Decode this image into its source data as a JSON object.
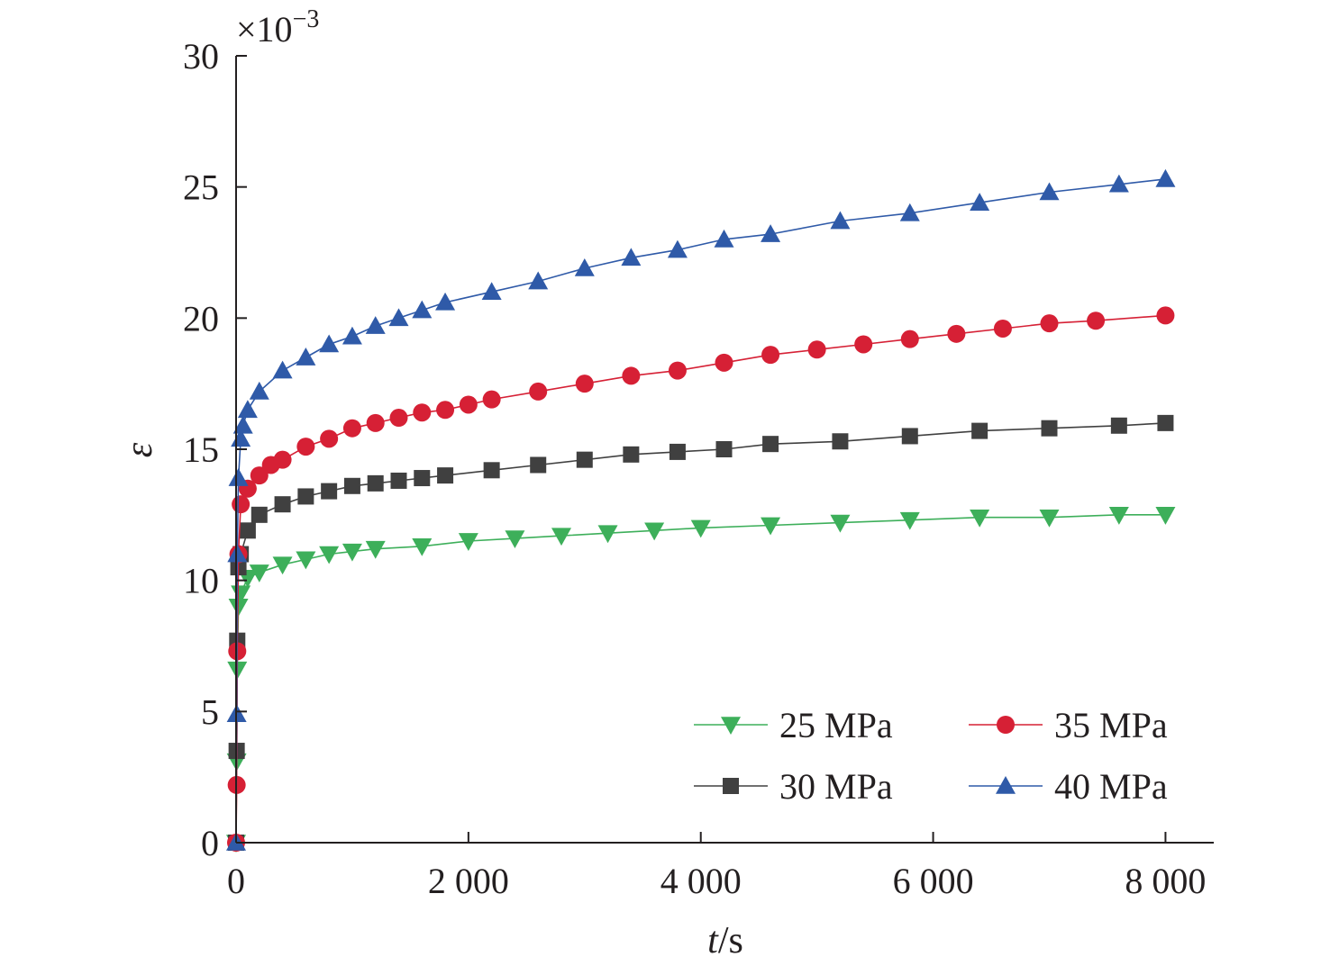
{
  "chart_data": {
    "type": "line",
    "xlabel_italic": "t",
    "xlabel_unit": "/s",
    "ylabel": "ε",
    "y_multiplier": "×10",
    "y_multiplier_exp": "−3",
    "xlim": [
      0,
      8400
    ],
    "ylim": [
      0,
      30
    ],
    "x_ticks": [
      0,
      2000,
      4000,
      6000,
      8000
    ],
    "x_tick_labels": [
      "0",
      "2 000",
      "4 000",
      "6 000",
      "8 000"
    ],
    "y_ticks": [
      0,
      5,
      10,
      15,
      20,
      25,
      30
    ],
    "y_tick_labels": [
      "0",
      "5",
      "10",
      "15",
      "20",
      "25",
      "30"
    ],
    "legend_position": "bottom-right",
    "series": [
      {
        "name": "25 MPa",
        "color": "#3daf5a",
        "marker": "triangle-down",
        "points": [
          [
            0,
            0
          ],
          [
            5,
            3.1
          ],
          [
            10,
            6.6
          ],
          [
            20,
            9.0
          ],
          [
            40,
            9.5
          ],
          [
            100,
            10.1
          ],
          [
            200,
            10.3
          ],
          [
            400,
            10.6
          ],
          [
            600,
            10.8
          ],
          [
            800,
            11.0
          ],
          [
            1000,
            11.1
          ],
          [
            1200,
            11.2
          ],
          [
            1600,
            11.3
          ],
          [
            2000,
            11.5
          ],
          [
            2400,
            11.6
          ],
          [
            2800,
            11.7
          ],
          [
            3200,
            11.8
          ],
          [
            3600,
            11.9
          ],
          [
            4000,
            12.0
          ],
          [
            4600,
            12.1
          ],
          [
            5200,
            12.2
          ],
          [
            5800,
            12.3
          ],
          [
            6400,
            12.4
          ],
          [
            7000,
            12.4
          ],
          [
            7600,
            12.5
          ],
          [
            8000,
            12.5
          ]
        ]
      },
      {
        "name": "30 MPa",
        "color": "#404040",
        "marker": "square",
        "points": [
          [
            0,
            0
          ],
          [
            5,
            3.5
          ],
          [
            10,
            7.7
          ],
          [
            20,
            10.5
          ],
          [
            40,
            11.0
          ],
          [
            100,
            11.9
          ],
          [
            200,
            12.5
          ],
          [
            400,
            12.9
          ],
          [
            600,
            13.2
          ],
          [
            800,
            13.4
          ],
          [
            1000,
            13.6
          ],
          [
            1200,
            13.7
          ],
          [
            1400,
            13.8
          ],
          [
            1600,
            13.9
          ],
          [
            1800,
            14.0
          ],
          [
            2200,
            14.2
          ],
          [
            2600,
            14.4
          ],
          [
            3000,
            14.6
          ],
          [
            3400,
            14.8
          ],
          [
            3800,
            14.9
          ],
          [
            4200,
            15.0
          ],
          [
            4600,
            15.2
          ],
          [
            5200,
            15.3
          ],
          [
            5800,
            15.5
          ],
          [
            6400,
            15.7
          ],
          [
            7000,
            15.8
          ],
          [
            7600,
            15.9
          ],
          [
            8000,
            16.0
          ]
        ]
      },
      {
        "name": "35 MPa",
        "color": "#d62035",
        "marker": "circle",
        "points": [
          [
            0,
            0
          ],
          [
            5,
            2.2
          ],
          [
            10,
            7.3
          ],
          [
            20,
            11.0
          ],
          [
            40,
            12.9
          ],
          [
            100,
            13.5
          ],
          [
            200,
            14.0
          ],
          [
            300,
            14.4
          ],
          [
            400,
            14.6
          ],
          [
            600,
            15.1
          ],
          [
            800,
            15.4
          ],
          [
            1000,
            15.8
          ],
          [
            1200,
            16.0
          ],
          [
            1400,
            16.2
          ],
          [
            1600,
            16.4
          ],
          [
            1800,
            16.5
          ],
          [
            2000,
            16.7
          ],
          [
            2200,
            16.9
          ],
          [
            2600,
            17.2
          ],
          [
            3000,
            17.5
          ],
          [
            3400,
            17.8
          ],
          [
            3800,
            18.0
          ],
          [
            4200,
            18.3
          ],
          [
            4600,
            18.6
          ],
          [
            5000,
            18.8
          ],
          [
            5400,
            19.0
          ],
          [
            5800,
            19.2
          ],
          [
            6200,
            19.4
          ],
          [
            6600,
            19.6
          ],
          [
            7000,
            19.8
          ],
          [
            7400,
            19.9
          ],
          [
            8000,
            20.1
          ]
        ]
      },
      {
        "name": "40 MPa",
        "color": "#2f5aa8",
        "marker": "triangle-up",
        "points": [
          [
            0,
            0
          ],
          [
            5,
            4.9
          ],
          [
            10,
            11.0
          ],
          [
            20,
            13.9
          ],
          [
            40,
            15.4
          ],
          [
            60,
            15.9
          ],
          [
            100,
            16.5
          ],
          [
            200,
            17.2
          ],
          [
            400,
            18.0
          ],
          [
            600,
            18.5
          ],
          [
            800,
            19.0
          ],
          [
            1000,
            19.3
          ],
          [
            1200,
            19.7
          ],
          [
            1400,
            20.0
          ],
          [
            1600,
            20.3
          ],
          [
            1800,
            20.6
          ],
          [
            2200,
            21.0
          ],
          [
            2600,
            21.4
          ],
          [
            3000,
            21.9
          ],
          [
            3400,
            22.3
          ],
          [
            3800,
            22.6
          ],
          [
            4200,
            23.0
          ],
          [
            4600,
            23.2
          ],
          [
            5200,
            23.7
          ],
          [
            5800,
            24.0
          ],
          [
            6400,
            24.4
          ],
          [
            7000,
            24.8
          ],
          [
            7600,
            25.1
          ],
          [
            8000,
            25.3
          ]
        ]
      }
    ]
  }
}
